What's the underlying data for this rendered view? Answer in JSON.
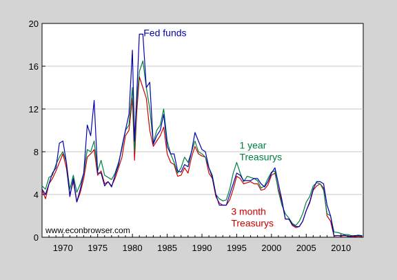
{
  "chart_data": {
    "type": "line",
    "title": "",
    "xlabel": "",
    "ylabel": "",
    "xlim": [
      1967,
      2013.2
    ],
    "ylim": [
      0,
      20
    ],
    "grid": "horizontal",
    "x_ticks": [
      1970,
      1975,
      1980,
      1985,
      1990,
      1995,
      2000,
      2005,
      2010
    ],
    "x_tick_labels": [
      "1970",
      "1975",
      "1980",
      "1985",
      "1990",
      "1995",
      "2000",
      "2005",
      "2010"
    ],
    "y_ticks": [
      0,
      4,
      8,
      12,
      16,
      20
    ],
    "y_tick_labels": [
      "0",
      "4",
      "8",
      "12",
      "16",
      "20"
    ],
    "series": [
      {
        "name": "3 month Treasurys",
        "color": "#cc0000",
        "label_lines": [
          "3 month",
          "Treasurys"
        ],
        "x": [
          1967,
          1967.5,
          1968,
          1968.5,
          1969,
          1969.5,
          1970,
          1970.5,
          1971,
          1971.5,
          1972,
          1972.5,
          1973,
          1973.5,
          1974,
          1974.5,
          1975,
          1975.5,
          1976,
          1976.5,
          1977,
          1977.5,
          1978,
          1978.5,
          1979,
          1979.5,
          1980,
          1980.3,
          1980.6,
          1981,
          1981.5,
          1982,
          1982.5,
          1983,
          1983.5,
          1984,
          1984.5,
          1985,
          1985.5,
          1986,
          1986.5,
          1987,
          1987.5,
          1988,
          1988.5,
          1989,
          1989.5,
          1990,
          1990.5,
          1991,
          1991.5,
          1992,
          1992.5,
          1993,
          1993.5,
          1994,
          1994.5,
          1995,
          1995.5,
          1996,
          1996.5,
          1997,
          1997.5,
          1998,
          1998.5,
          1999,
          1999.5,
          2000,
          2000.5,
          2001,
          2001.5,
          2002,
          2002.5,
          2003,
          2003.5,
          2004,
          2004.5,
          2005,
          2005.5,
          2006,
          2006.5,
          2007,
          2007.5,
          2008,
          2008.5,
          2009,
          2009.5,
          2010,
          2010.5,
          2011,
          2011.5,
          2012,
          2012.5,
          2013
        ],
        "y": [
          4.4,
          3.6,
          5.0,
          5.5,
          6.2,
          7.0,
          7.8,
          6.5,
          4.0,
          5.2,
          3.3,
          4.2,
          5.5,
          7.5,
          7.8,
          8.2,
          5.8,
          6.2,
          5.0,
          5.2,
          4.8,
          5.5,
          6.5,
          7.5,
          9.5,
          10.0,
          13.0,
          7.2,
          11.5,
          15.0,
          14.0,
          13.0,
          10.0,
          8.5,
          9.0,
          9.5,
          10.3,
          7.8,
          7.0,
          6.8,
          5.7,
          5.8,
          6.5,
          6.0,
          7.5,
          8.5,
          7.8,
          7.6,
          7.5,
          6.0,
          5.5,
          3.8,
          3.2,
          3.0,
          3.0,
          3.5,
          4.5,
          5.7,
          5.5,
          5.0,
          5.1,
          5.2,
          5.0,
          5.0,
          4.4,
          4.5,
          4.9,
          5.8,
          6.0,
          4.5,
          3.3,
          1.7,
          1.7,
          1.1,
          0.9,
          1.0,
          1.5,
          2.5,
          3.2,
          4.4,
          4.8,
          5.0,
          4.6,
          2.0,
          1.5,
          0.1,
          0.15,
          0.1,
          0.15,
          0.1,
          0.05,
          0.05,
          0.1,
          0.05
        ]
      },
      {
        "name": "1 year Treasurys",
        "color": "#008040",
        "label_lines": [
          "1 year",
          "Treasurys"
        ],
        "x": [
          1967,
          1967.5,
          1968,
          1968.5,
          1969,
          1969.5,
          1970,
          1970.5,
          1971,
          1971.5,
          1972,
          1972.5,
          1973,
          1973.5,
          1974,
          1974.5,
          1975,
          1975.5,
          1976,
          1976.5,
          1977,
          1977.5,
          1978,
          1978.5,
          1979,
          1979.5,
          1980,
          1980.3,
          1980.6,
          1981,
          1981.5,
          1982,
          1982.5,
          1983,
          1983.5,
          1984,
          1984.5,
          1985,
          1985.5,
          1986,
          1986.5,
          1987,
          1987.5,
          1988,
          1988.5,
          1989,
          1989.5,
          1990,
          1990.5,
          1991,
          1991.5,
          1992,
          1992.5,
          1993,
          1993.5,
          1994,
          1994.5,
          1995,
          1995.5,
          1996,
          1996.5,
          1997,
          1997.5,
          1998,
          1998.5,
          1999,
          1999.5,
          2000,
          2000.5,
          2001,
          2001.5,
          2002,
          2002.5,
          2003,
          2003.5,
          2004,
          2004.5,
          2005,
          2005.5,
          2006,
          2006.5,
          2007,
          2007.5,
          2008,
          2008.5,
          2009,
          2009.5,
          2010,
          2010.5,
          2011,
          2011.5,
          2012,
          2012.5,
          2013
        ],
        "y": [
          4.8,
          4.5,
          5.6,
          5.8,
          6.8,
          7.5,
          8.0,
          7.0,
          4.5,
          5.8,
          4.2,
          5.0,
          6.0,
          8.2,
          8.0,
          9.0,
          6.2,
          7.2,
          5.8,
          5.6,
          5.4,
          6.0,
          7.0,
          8.3,
          10.0,
          10.5,
          14.0,
          8.0,
          12.5,
          15.5,
          16.5,
          14.0,
          12.0,
          8.8,
          10.0,
          10.5,
          12.0,
          9.0,
          7.8,
          7.0,
          6.0,
          6.5,
          7.5,
          7.0,
          8.0,
          9.0,
          8.0,
          7.8,
          7.5,
          6.5,
          5.8,
          4.0,
          3.6,
          3.4,
          3.5,
          4.5,
          6.0,
          7.0,
          6.0,
          5.2,
          5.7,
          5.6,
          5.5,
          5.3,
          4.6,
          4.8,
          5.5,
          6.1,
          6.2,
          4.3,
          3.0,
          2.2,
          1.8,
          1.3,
          1.1,
          1.5,
          2.2,
          3.3,
          3.8,
          4.8,
          5.1,
          5.0,
          4.4,
          2.2,
          2.0,
          0.5,
          0.45,
          0.35,
          0.25,
          0.25,
          0.15,
          0.15,
          0.2,
          0.15
        ]
      },
      {
        "name": "Fed funds",
        "color": "#0000b0",
        "label_lines": [
          "Fed funds"
        ],
        "x": [
          1967,
          1967.5,
          1968,
          1968.5,
          1969,
          1969.5,
          1970,
          1970.5,
          1971,
          1971.5,
          1972,
          1972.5,
          1973,
          1973.5,
          1974,
          1974.5,
          1975,
          1975.5,
          1976,
          1976.5,
          1977,
          1977.5,
          1978,
          1978.5,
          1979,
          1979.5,
          1980,
          1980.3,
          1980.6,
          1981,
          1981.5,
          1982,
          1982.5,
          1983,
          1983.5,
          1984,
          1984.5,
          1985,
          1985.5,
          1986,
          1986.5,
          1987,
          1987.5,
          1988,
          1988.5,
          1989,
          1989.5,
          1990,
          1990.5,
          1991,
          1991.5,
          1992,
          1992.5,
          1993,
          1993.5,
          1994,
          1994.5,
          1995,
          1995.5,
          1996,
          1996.5,
          1997,
          1997.5,
          1998,
          1998.5,
          1999,
          1999.5,
          2000,
          2000.5,
          2001,
          2001.5,
          2002,
          2002.5,
          2003,
          2003.5,
          2004,
          2004.5,
          2005,
          2005.5,
          2006,
          2006.5,
          2007,
          2007.5,
          2008,
          2008.5,
          2009,
          2009.5,
          2010,
          2010.5,
          2011,
          2011.5,
          2012,
          2012.5,
          2013
        ],
        "y": [
          4.5,
          4.0,
          5.0,
          6.0,
          6.5,
          8.8,
          9.0,
          7.0,
          3.8,
          5.5,
          3.3,
          4.5,
          6.0,
          10.5,
          9.5,
          12.8,
          6.0,
          6.0,
          4.8,
          5.2,
          4.7,
          5.8,
          6.8,
          8.5,
          10.0,
          11.5,
          17.5,
          9.0,
          13.0,
          19.0,
          19.0,
          14.0,
          14.5,
          8.7,
          9.5,
          10.0,
          11.5,
          8.5,
          7.8,
          7.8,
          6.2,
          6.1,
          6.8,
          6.6,
          8.0,
          9.8,
          9.0,
          8.2,
          8.0,
          6.5,
          5.6,
          4.0,
          3.0,
          3.0,
          3.0,
          4.0,
          5.0,
          6.0,
          5.8,
          5.3,
          5.3,
          5.3,
          5.5,
          5.5,
          5.0,
          4.7,
          5.2,
          6.0,
          6.5,
          5.0,
          3.5,
          1.7,
          1.7,
          1.2,
          1.0,
          1.0,
          1.5,
          2.5,
          3.3,
          4.5,
          5.2,
          5.2,
          5.0,
          3.0,
          2.0,
          0.15,
          0.15,
          0.15,
          0.2,
          0.1,
          0.1,
          0.15,
          0.15,
          0.15
        ]
      }
    ],
    "annotations": [
      {
        "text": "www.econbrowser.com",
        "color": "#000000"
      }
    ]
  }
}
